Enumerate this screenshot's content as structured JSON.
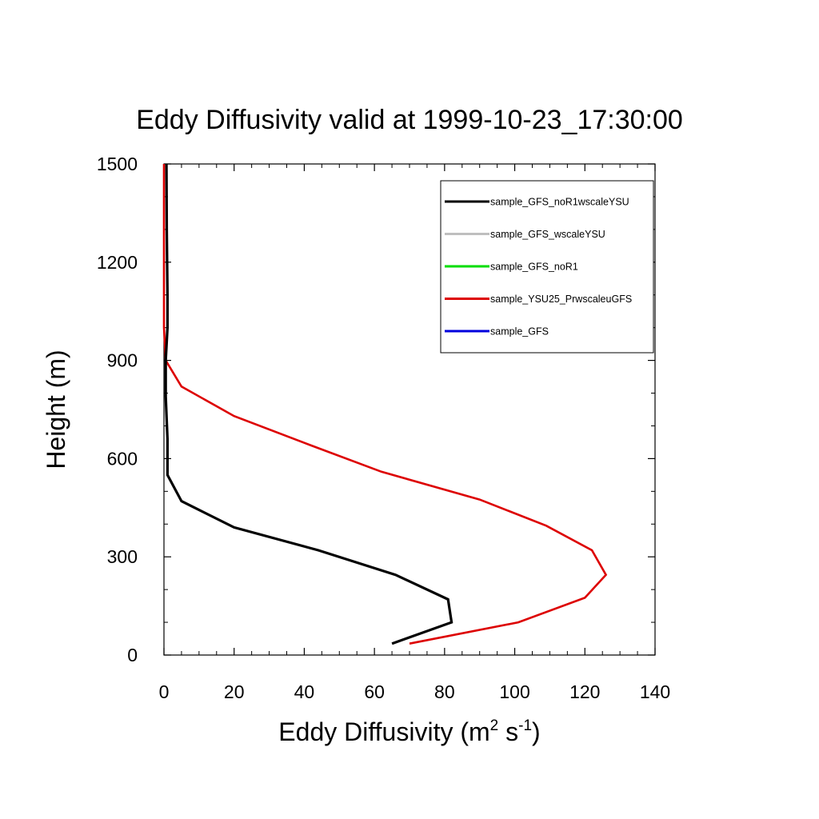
{
  "chart_data": {
    "type": "line",
    "title": "Eddy Diffusivity valid at 1999-10-23_17:30:00",
    "xlabel": {
      "base": "Eddy Diffusivity (m",
      "sup1": "2",
      "mid": " s",
      "sup2": "-1",
      "end": ")"
    },
    "ylabel": "Height (m)",
    "xlim": [
      0,
      140
    ],
    "ylim": [
      0,
      1500
    ],
    "xticks": [
      0,
      20,
      40,
      60,
      80,
      100,
      120,
      140
    ],
    "yticks": [
      0,
      300,
      600,
      900,
      1200,
      1500
    ],
    "xtick_labels": [
      "0",
      "20",
      "40",
      "60",
      "80",
      "100",
      "120",
      "140"
    ],
    "ytick_labels": [
      "0",
      "300",
      "600",
      "900",
      "1200",
      "1500"
    ],
    "x_minor_step": 5,
    "y_minor_step": 100,
    "grid": false,
    "legend_position": "top-right",
    "series": [
      {
        "name": "sample_GFS_noR1wscaleYSU",
        "color": "#000000",
        "points": [
          [
            65,
            35
          ],
          [
            82,
            100
          ],
          [
            81,
            170
          ],
          [
            66,
            245
          ],
          [
            44,
            320
          ],
          [
            20,
            390
          ],
          [
            5,
            470
          ],
          [
            1,
            550
          ],
          [
            1,
            660
          ],
          [
            0.5,
            790
          ],
          [
            0.5,
            900
          ],
          [
            1,
            1000
          ],
          [
            1,
            1100
          ],
          [
            0.8,
            1300
          ],
          [
            0.7,
            1500
          ]
        ]
      },
      {
        "name": "sample_GFS_wscaleYSU",
        "color": "#bfbfbf",
        "points": []
      },
      {
        "name": "sample_GFS_noR1",
        "color": "#00dd00",
        "points": []
      },
      {
        "name": "sample_YSU25_PrwscaleuGFS",
        "color": "#dd0000",
        "points": [
          [
            70,
            35
          ],
          [
            101,
            100
          ],
          [
            120,
            175
          ],
          [
            126,
            245
          ],
          [
            122,
            320
          ],
          [
            109,
            395
          ],
          [
            90,
            475
          ],
          [
            62,
            560
          ],
          [
            42,
            640
          ],
          [
            20,
            730
          ],
          [
            5,
            820
          ],
          [
            0.5,
            900
          ],
          [
            0,
            1000
          ],
          [
            0,
            1200
          ],
          [
            0,
            1500
          ]
        ]
      },
      {
        "name": "sample_GFS",
        "color": "#0000dd",
        "points": []
      }
    ]
  }
}
